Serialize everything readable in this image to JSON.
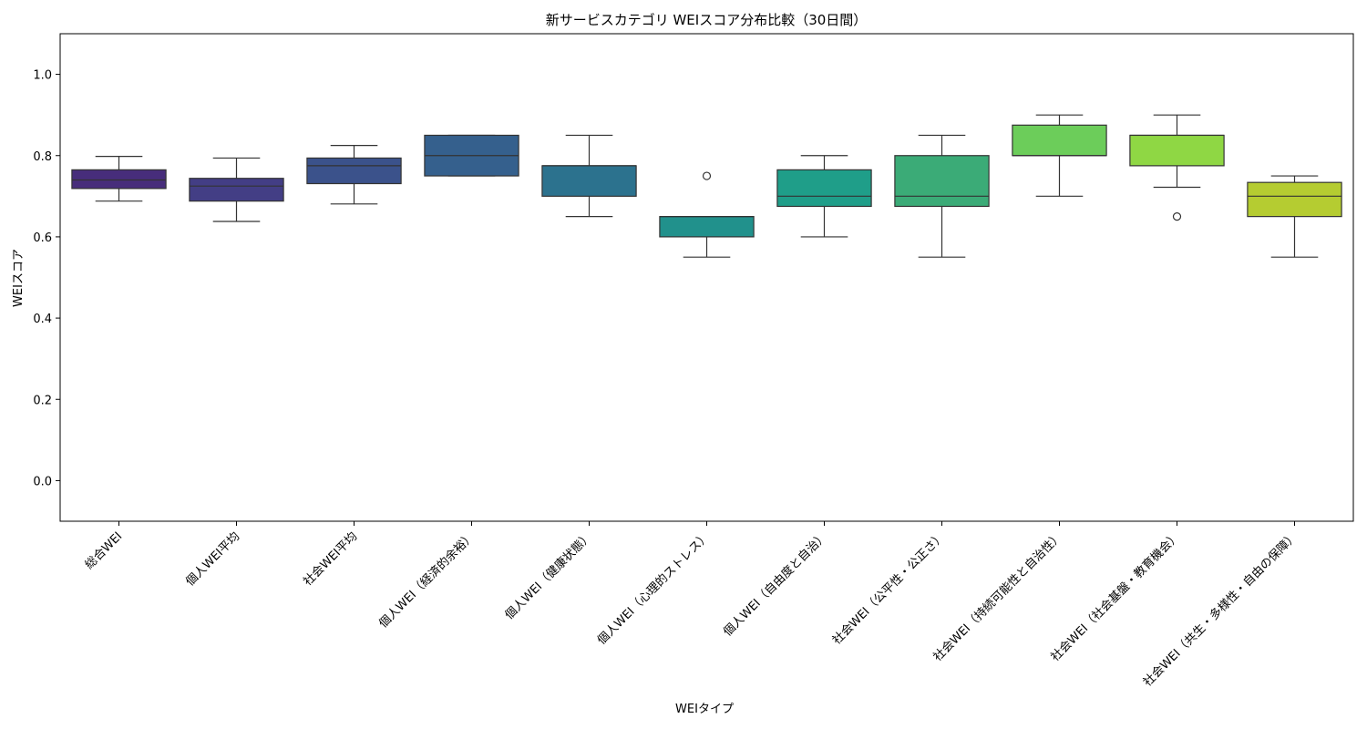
{
  "chart_data": {
    "type": "box",
    "title": "新サービスカテゴリ WEIスコア分布比較（30日間）",
    "xlabel": "WEIタイプ",
    "ylabel": "WEIスコア",
    "ylim": [
      -0.1,
      1.1
    ],
    "yticks": [
      "0.0",
      "0.2",
      "0.4",
      "0.6",
      "0.8",
      "1.0"
    ],
    "grid": false,
    "legend": "none",
    "palette": "viridis",
    "categories": [
      "総合WEI",
      "個人WEI平均",
      "社会WEI平均",
      "個人WEI（経済的余裕）",
      "個人WEI（健康状態）",
      "個人WEI（心理的ストレス）",
      "個人WEI（自由度と自治）",
      "社会WEI（公平性・公正さ）",
      "社会WEI（持続可能性と自治性）",
      "社会WEI（社会基盤・教育機会）",
      "社会WEI（共生・多様性・自由の保障）"
    ],
    "boxes": [
      {
        "whisker_low": 0.688,
        "q1": 0.719,
        "median": 0.74,
        "q3": 0.765,
        "whisker_high": 0.798,
        "outliers": [],
        "color": "#472d7b"
      },
      {
        "whisker_low": 0.638,
        "q1": 0.688,
        "median": 0.725,
        "q3": 0.744,
        "whisker_high": 0.794,
        "outliers": [],
        "color": "#433e85"
      },
      {
        "whisker_low": 0.681,
        "q1": 0.731,
        "median": 0.775,
        "q3": 0.794,
        "whisker_high": 0.825,
        "outliers": [],
        "color": "#3b528b"
      },
      {
        "whisker_low": 0.75,
        "q1": 0.75,
        "median": 0.8,
        "q3": 0.85,
        "whisker_high": 0.85,
        "outliers": [],
        "color": "#35608d"
      },
      {
        "whisker_low": 0.65,
        "q1": 0.7,
        "median": 0.775,
        "q3": 0.775,
        "whisker_high": 0.85,
        "outliers": [],
        "color": "#2c728e"
      },
      {
        "whisker_low": 0.55,
        "q1": 0.6,
        "median": 0.65,
        "q3": 0.65,
        "whisker_high": 0.65,
        "outliers": [
          0.75
        ],
        "color": "#21918c"
      },
      {
        "whisker_low": 0.6,
        "q1": 0.675,
        "median": 0.7,
        "q3": 0.765,
        "whisker_high": 0.8,
        "outliers": [],
        "color": "#1f9e89"
      },
      {
        "whisker_low": 0.55,
        "q1": 0.675,
        "median": 0.7,
        "q3": 0.8,
        "whisker_high": 0.85,
        "outliers": [],
        "color": "#3bab77"
      },
      {
        "whisker_low": 0.7,
        "q1": 0.8,
        "median": 0.8,
        "q3": 0.875,
        "whisker_high": 0.9,
        "outliers": [],
        "color": "#6ccd5a"
      },
      {
        "whisker_low": 0.722,
        "q1": 0.775,
        "median": 0.85,
        "q3": 0.85,
        "whisker_high": 0.9,
        "outliers": [
          0.65
        ],
        "color": "#8fd744"
      },
      {
        "whisker_low": 0.55,
        "q1": 0.65,
        "median": 0.7,
        "q3": 0.734,
        "whisker_high": 0.75,
        "outliers": [],
        "color": "#b5cc31"
      }
    ]
  }
}
